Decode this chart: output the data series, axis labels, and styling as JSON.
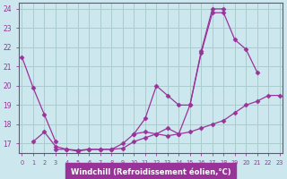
{
  "xlabel": "Windchill (Refroidissement éolien,°C)",
  "background_color": "#cce8ee",
  "grid_color": "#aacccc",
  "line_color": "#993399",
  "hours": [
    0,
    1,
    2,
    3,
    4,
    5,
    6,
    7,
    8,
    9,
    10,
    11,
    12,
    13,
    14,
    15,
    16,
    17,
    18,
    19,
    20,
    21,
    22,
    23
  ],
  "series1": [
    21.5,
    19.9,
    18.5,
    17.1,
    null,
    null,
    null,
    null,
    null,
    null,
    17.5,
    18.3,
    20.0,
    19.5,
    19.0,
    19.0,
    21.7,
    23.8,
    23.8,
    22.4,
    21.9,
    20.7,
    null,
    null
  ],
  "series2": [
    null,
    17.1,
    17.6,
    16.85,
    16.7,
    16.6,
    16.7,
    16.7,
    16.7,
    17.0,
    17.5,
    17.6,
    17.5,
    17.8,
    17.5,
    19.0,
    21.8,
    24.0,
    24.0,
    null,
    null,
    null,
    null,
    null
  ],
  "series3": [
    null,
    null,
    null,
    16.7,
    16.7,
    16.65,
    16.7,
    16.7,
    16.7,
    16.75,
    17.1,
    17.3,
    17.5,
    17.4,
    17.5,
    17.6,
    17.8,
    18.0,
    18.2,
    18.6,
    19.0,
    19.2,
    19.5,
    19.5
  ],
  "ylim": [
    16.5,
    24.3
  ],
  "yticks": [
    17,
    18,
    19,
    20,
    21,
    22,
    23,
    24
  ],
  "xlim": [
    -0.3,
    23.3
  ]
}
